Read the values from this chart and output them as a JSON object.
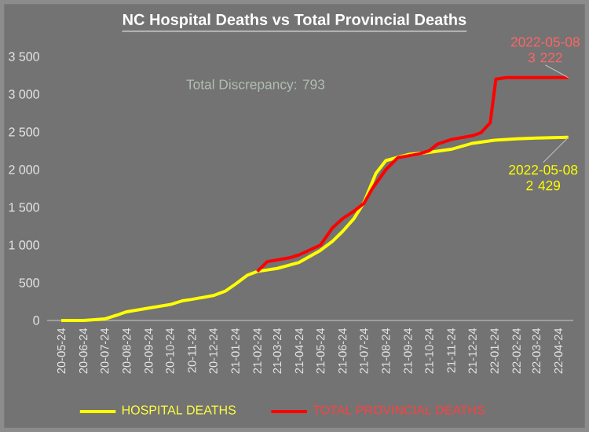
{
  "chart_data": {
    "type": "line",
    "title": "NC Hospital Deaths vs Total Provincial Deaths",
    "annotations": [
      "Total Discrepancy:  793",
      {
        "text": "2022-05-08 3 222",
        "x": "2022-05-08",
        "y": 3222
      },
      {
        "text": "2022-05-08 2 429",
        "x": "2022-05-08",
        "y": 2429
      }
    ],
    "series": [
      {
        "name": "HOSPITAL DEATHS",
        "color": "#ffff00",
        "x": [
          "2020-05-24",
          "2020-06-24",
          "2020-07-10",
          "2020-07-24",
          "2020-08-10",
          "2020-08-24",
          "2020-09-24",
          "2020-10-24",
          "2020-11-10",
          "2020-11-24",
          "2020-12-24",
          "2021-01-10",
          "2021-01-24",
          "2021-02-10",
          "2021-02-24",
          "2021-03-24",
          "2021-04-24",
          "2021-05-24",
          "2021-06-10",
          "2021-06-24",
          "2021-07-10",
          "2021-07-24",
          "2021-08-10",
          "2021-08-24",
          "2021-09-24",
          "2021-10-24",
          "2021-11-24",
          "2021-12-24",
          "2022-01-24",
          "2022-02-24",
          "2022-03-24",
          "2022-05-08"
        ],
        "values": [
          0,
          0,
          10,
          20,
          70,
          115,
          165,
          210,
          260,
          280,
          330,
          390,
          480,
          600,
          650,
          690,
          770,
          930,
          1050,
          1180,
          1350,
          1560,
          1950,
          2120,
          2200,
          2230,
          2270,
          2350,
          2390,
          2410,
          2420,
          2429
        ]
      },
      {
        "name": "TOTAL PROVINCIAL DEATHS",
        "color": "#ff0000",
        "x": [
          "2021-02-24",
          "2021-03-10",
          "2021-04-10",
          "2021-04-24",
          "2021-05-24",
          "2021-06-10",
          "2021-06-24",
          "2021-07-10",
          "2021-07-24",
          "2021-08-05",
          "2021-08-24",
          "2021-09-10",
          "2021-10-10",
          "2021-10-24",
          "2021-11-05",
          "2021-11-24",
          "2021-12-24",
          "2022-01-05",
          "2022-01-18",
          "2022-01-26",
          "2022-02-10",
          "2022-05-08"
        ],
        "values": [
          650,
          780,
          830,
          870,
          1000,
          1230,
          1350,
          1450,
          1550,
          1750,
          2000,
          2160,
          2210,
          2250,
          2340,
          2400,
          2450,
          2490,
          2620,
          3200,
          3222,
          3222
        ]
      }
    ],
    "xlim": [
      "2020-05-04",
      "2022-05-15"
    ],
    "xticks": [
      {
        "value": "2020-05-24",
        "label": "20-05-24"
      },
      {
        "value": "2020-06-24",
        "label": "20-06-24"
      },
      {
        "value": "2020-07-24",
        "label": "20-07-24"
      },
      {
        "value": "2020-08-24",
        "label": "20-08-24"
      },
      {
        "value": "2020-09-24",
        "label": "20-09-24"
      },
      {
        "value": "2020-10-24",
        "label": "20-10-24"
      },
      {
        "value": "2020-11-24",
        "label": "20-11-24"
      },
      {
        "value": "2020-12-24",
        "label": "20-12-24"
      },
      {
        "value": "2021-01-24",
        "label": "21-01-24"
      },
      {
        "value": "2021-02-24",
        "label": "21-02-24"
      },
      {
        "value": "2021-03-24",
        "label": "21-03-24"
      },
      {
        "value": "2021-04-24",
        "label": "21-04-24"
      },
      {
        "value": "2021-05-24",
        "label": "21-05-24"
      },
      {
        "value": "2021-06-24",
        "label": "21-06-24"
      },
      {
        "value": "2021-07-24",
        "label": "21-07-24"
      },
      {
        "value": "2021-08-24",
        "label": "21-08-24"
      },
      {
        "value": "2021-09-24",
        "label": "21-09-24"
      },
      {
        "value": "2021-10-24",
        "label": "21-10-24"
      },
      {
        "value": "2021-11-24",
        "label": "21-11-24"
      },
      {
        "value": "2021-12-24",
        "label": "21-12-24"
      },
      {
        "value": "2022-01-24",
        "label": "22-01-24"
      },
      {
        "value": "2022-02-24",
        "label": "22-02-24"
      },
      {
        "value": "2022-03-24",
        "label": "22-03-24"
      },
      {
        "value": "2022-04-24",
        "label": "22-04-24"
      }
    ],
    "ylim": [
      0,
      3500
    ],
    "yticks": [
      {
        "value": 0,
        "label": "0"
      },
      {
        "value": 500,
        "label": "500"
      },
      {
        "value": 1000,
        "label": "1 000"
      },
      {
        "value": 1500,
        "label": "1 500"
      },
      {
        "value": 2000,
        "label": "2 000"
      },
      {
        "value": 2500,
        "label": "2 500"
      },
      {
        "value": 3000,
        "label": "3 000"
      },
      {
        "value": 3500,
        "label": "3 500"
      }
    ],
    "legend": "bottom",
    "marker": "none",
    "line_style": "solid"
  }
}
